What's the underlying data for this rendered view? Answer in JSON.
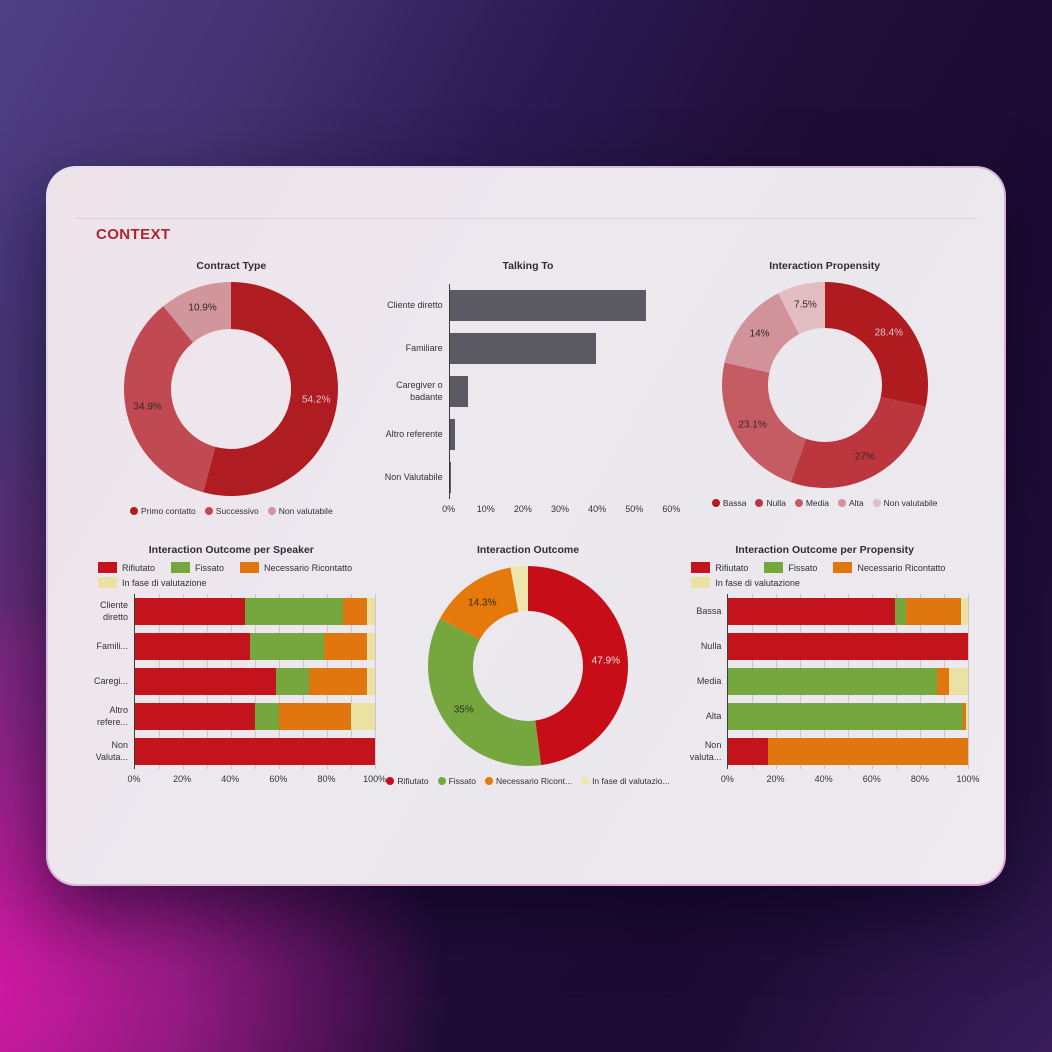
{
  "page": {
    "title": "CONTEXT"
  },
  "colors": {
    "page_title": "#AD2430",
    "bar_gray": "#5B5A62",
    "rifiutato_red": "#C3141E",
    "fissato_green": "#76A73E",
    "ricontatto_orange": "#E0770E",
    "valutazione_yellow": "#E9E2A2"
  },
  "chart_data": [
    {
      "type": "donut",
      "title": "Contract Type",
      "segments": [
        {
          "label": "Primo contatto",
          "value": 54.2,
          "display": "54.2%",
          "color": "#AF1C22",
          "text_color": "#D9C9CB"
        },
        {
          "label": "Successivo",
          "value": 34.9,
          "display": "34.9%",
          "color": "#C14A52",
          "text_color": "#33272A"
        },
        {
          "label": "Non valutabile",
          "value": 10.9,
          "display": "10.9%",
          "color": "#D0969C",
          "text_color": "#33272A"
        }
      ]
    },
    {
      "type": "bar",
      "title": "Talking To",
      "bar_color": "#5B5A62",
      "xmax": 60,
      "categories": [
        "Cliente diretto",
        "Familiare",
        "Caregiver o\nbadante",
        "Altro referente",
        "Non Valutabile"
      ],
      "values": [
        53.2,
        39.6,
        5.0,
        1.4,
        0.3
      ],
      "ticks": [
        "0%",
        "10%",
        "20%",
        "30%",
        "40%",
        "50%",
        "60%"
      ]
    },
    {
      "type": "donut",
      "title": "Interaction Propensity",
      "segments": [
        {
          "label": "Bassa",
          "value": 28.4,
          "display": "28.4%",
          "color": "#B01B20",
          "text_color": "#D9C9CB"
        },
        {
          "label": "Nulla",
          "value": 27,
          "display": "27%",
          "color": "#BB363D",
          "text_color": "#33272A"
        },
        {
          "label": "Media",
          "value": 23.1,
          "display": "23.1%",
          "color": "#C55C63",
          "text_color": "#33272A"
        },
        {
          "label": "Alta",
          "value": 14,
          "display": "14%",
          "color": "#D2929A",
          "text_color": "#33272A"
        },
        {
          "label": "Non valutabile",
          "value": 7.5,
          "display": "7.5%",
          "color": "#E2BEC3",
          "text_color": "#33272A"
        }
      ]
    },
    {
      "type": "stacked-bar",
      "title": "Interaction Outcome per Speaker",
      "legend": [
        {
          "label": "Rifiutato",
          "color": "#C3141E"
        },
        {
          "label": "Fissato",
          "color": "#76A73E"
        },
        {
          "label": "Necessario Ricontatto",
          "color": "#E0770E"
        },
        {
          "label": "In fase di valutazione",
          "color": "#E9E2A2"
        }
      ],
      "categories": [
        "Cliente\ndiretto",
        "Famili...",
        "Caregi...",
        "Altro\nrefere...",
        "Non\nValuta..."
      ],
      "series": [
        {
          "name": "Rifiutato",
          "color": "#C3141E",
          "values": [
            46,
            48,
            59,
            50,
            100
          ]
        },
        {
          "name": "Fissato",
          "color": "#76A73E",
          "values": [
            41,
            31,
            13.5,
            10,
            0
          ]
        },
        {
          "name": "Necessario Ricontatto",
          "color": "#E0770E",
          "values": [
            10,
            18,
            24.5,
            30,
            0
          ]
        },
        {
          "name": "In fase di valutazione",
          "color": "#E9E2A2",
          "values": [
            3,
            3,
            3,
            10,
            0
          ]
        }
      ],
      "ticks": [
        "0%",
        "20%",
        "40%",
        "60%",
        "80%",
        "100%"
      ]
    },
    {
      "type": "donut",
      "title": "Interaction Outcome",
      "segments": [
        {
          "label": "Rifiutato",
          "value": 47.9,
          "display": "47.9%",
          "color": "#C60D18",
          "text_color": "#EADFE0"
        },
        {
          "label": "Fissato",
          "value": 35,
          "display": "35%",
          "color": "#76A73E",
          "text_color": "#2D2D22"
        },
        {
          "label": "Necessario Ricont...",
          "value": 14.3,
          "display": "14.3%",
          "color": "#E5790C",
          "text_color": "#3A2A18"
        },
        {
          "label": "In fase di valutazio...",
          "value": 2.8,
          "color": "#EDE6AC",
          "text_color": "#333333"
        }
      ]
    },
    {
      "type": "stacked-bar",
      "title": "Interaction Outcome per Propensity",
      "legend": [
        {
          "label": "Rifiutato",
          "color": "#C3141E"
        },
        {
          "label": "Fissato",
          "color": "#76A73E"
        },
        {
          "label": "Necessario Ricontatto",
          "color": "#E0770E"
        },
        {
          "label": "In fase di valutazione",
          "color": "#E9E2A2"
        }
      ],
      "categories": [
        "Bassa",
        "Nulla",
        "Media",
        "Alta",
        "Non\nvaluta..."
      ],
      "series": [
        {
          "name": "Rifiutato",
          "color": "#C3141E",
          "values": [
            69.5,
            100,
            0,
            0,
            16.5
          ]
        },
        {
          "name": "Fissato",
          "color": "#76A73E",
          "values": [
            4.5,
            0,
            87,
            98,
            0
          ]
        },
        {
          "name": "Necessario Ricontatto",
          "color": "#E0770E",
          "values": [
            23,
            0,
            5,
            1,
            83.5
          ]
        },
        {
          "name": "In fase di valutazione",
          "color": "#E9E2A2",
          "values": [
            3,
            0,
            8,
            1,
            0
          ]
        }
      ],
      "ticks": [
        "0%",
        "20%",
        "40%",
        "60%",
        "80%",
        "100%"
      ]
    }
  ]
}
